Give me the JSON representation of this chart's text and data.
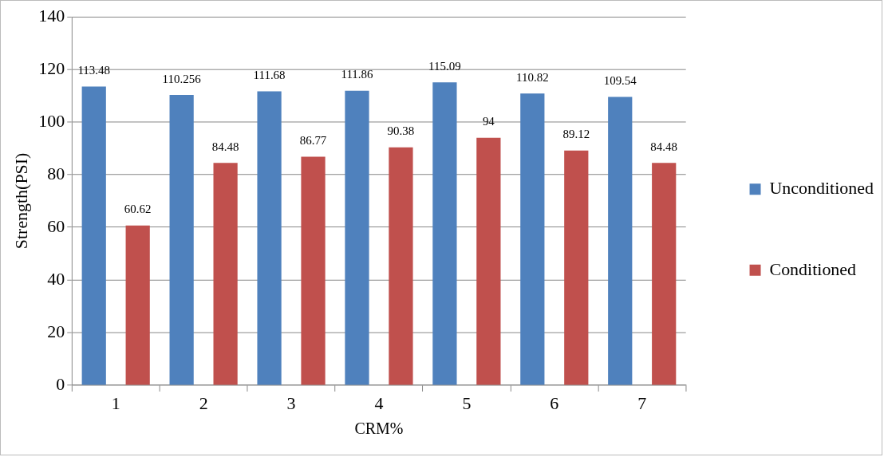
{
  "chart_data": {
    "type": "bar",
    "xlabel": "CRM%",
    "ylabel": "Strength(PSI)",
    "categories": [
      "1",
      "2",
      "3",
      "4",
      "5",
      "6",
      "7"
    ],
    "series": [
      {
        "name": "Unconditioned",
        "color": "#4f81bd",
        "values": [
          113.48,
          110.256,
          111.68,
          111.86,
          115.09,
          110.82,
          109.54
        ]
      },
      {
        "name": "Conditioned",
        "color": "#c0504d",
        "values": [
          60.62,
          84.48,
          86.77,
          90.38,
          94,
          89.12,
          84.48
        ]
      }
    ],
    "ylim": [
      0,
      140
    ],
    "yticks": [
      0,
      20,
      40,
      60,
      80,
      100,
      120,
      140
    ],
    "grid": "y",
    "legend": "right",
    "data_labels": true
  }
}
